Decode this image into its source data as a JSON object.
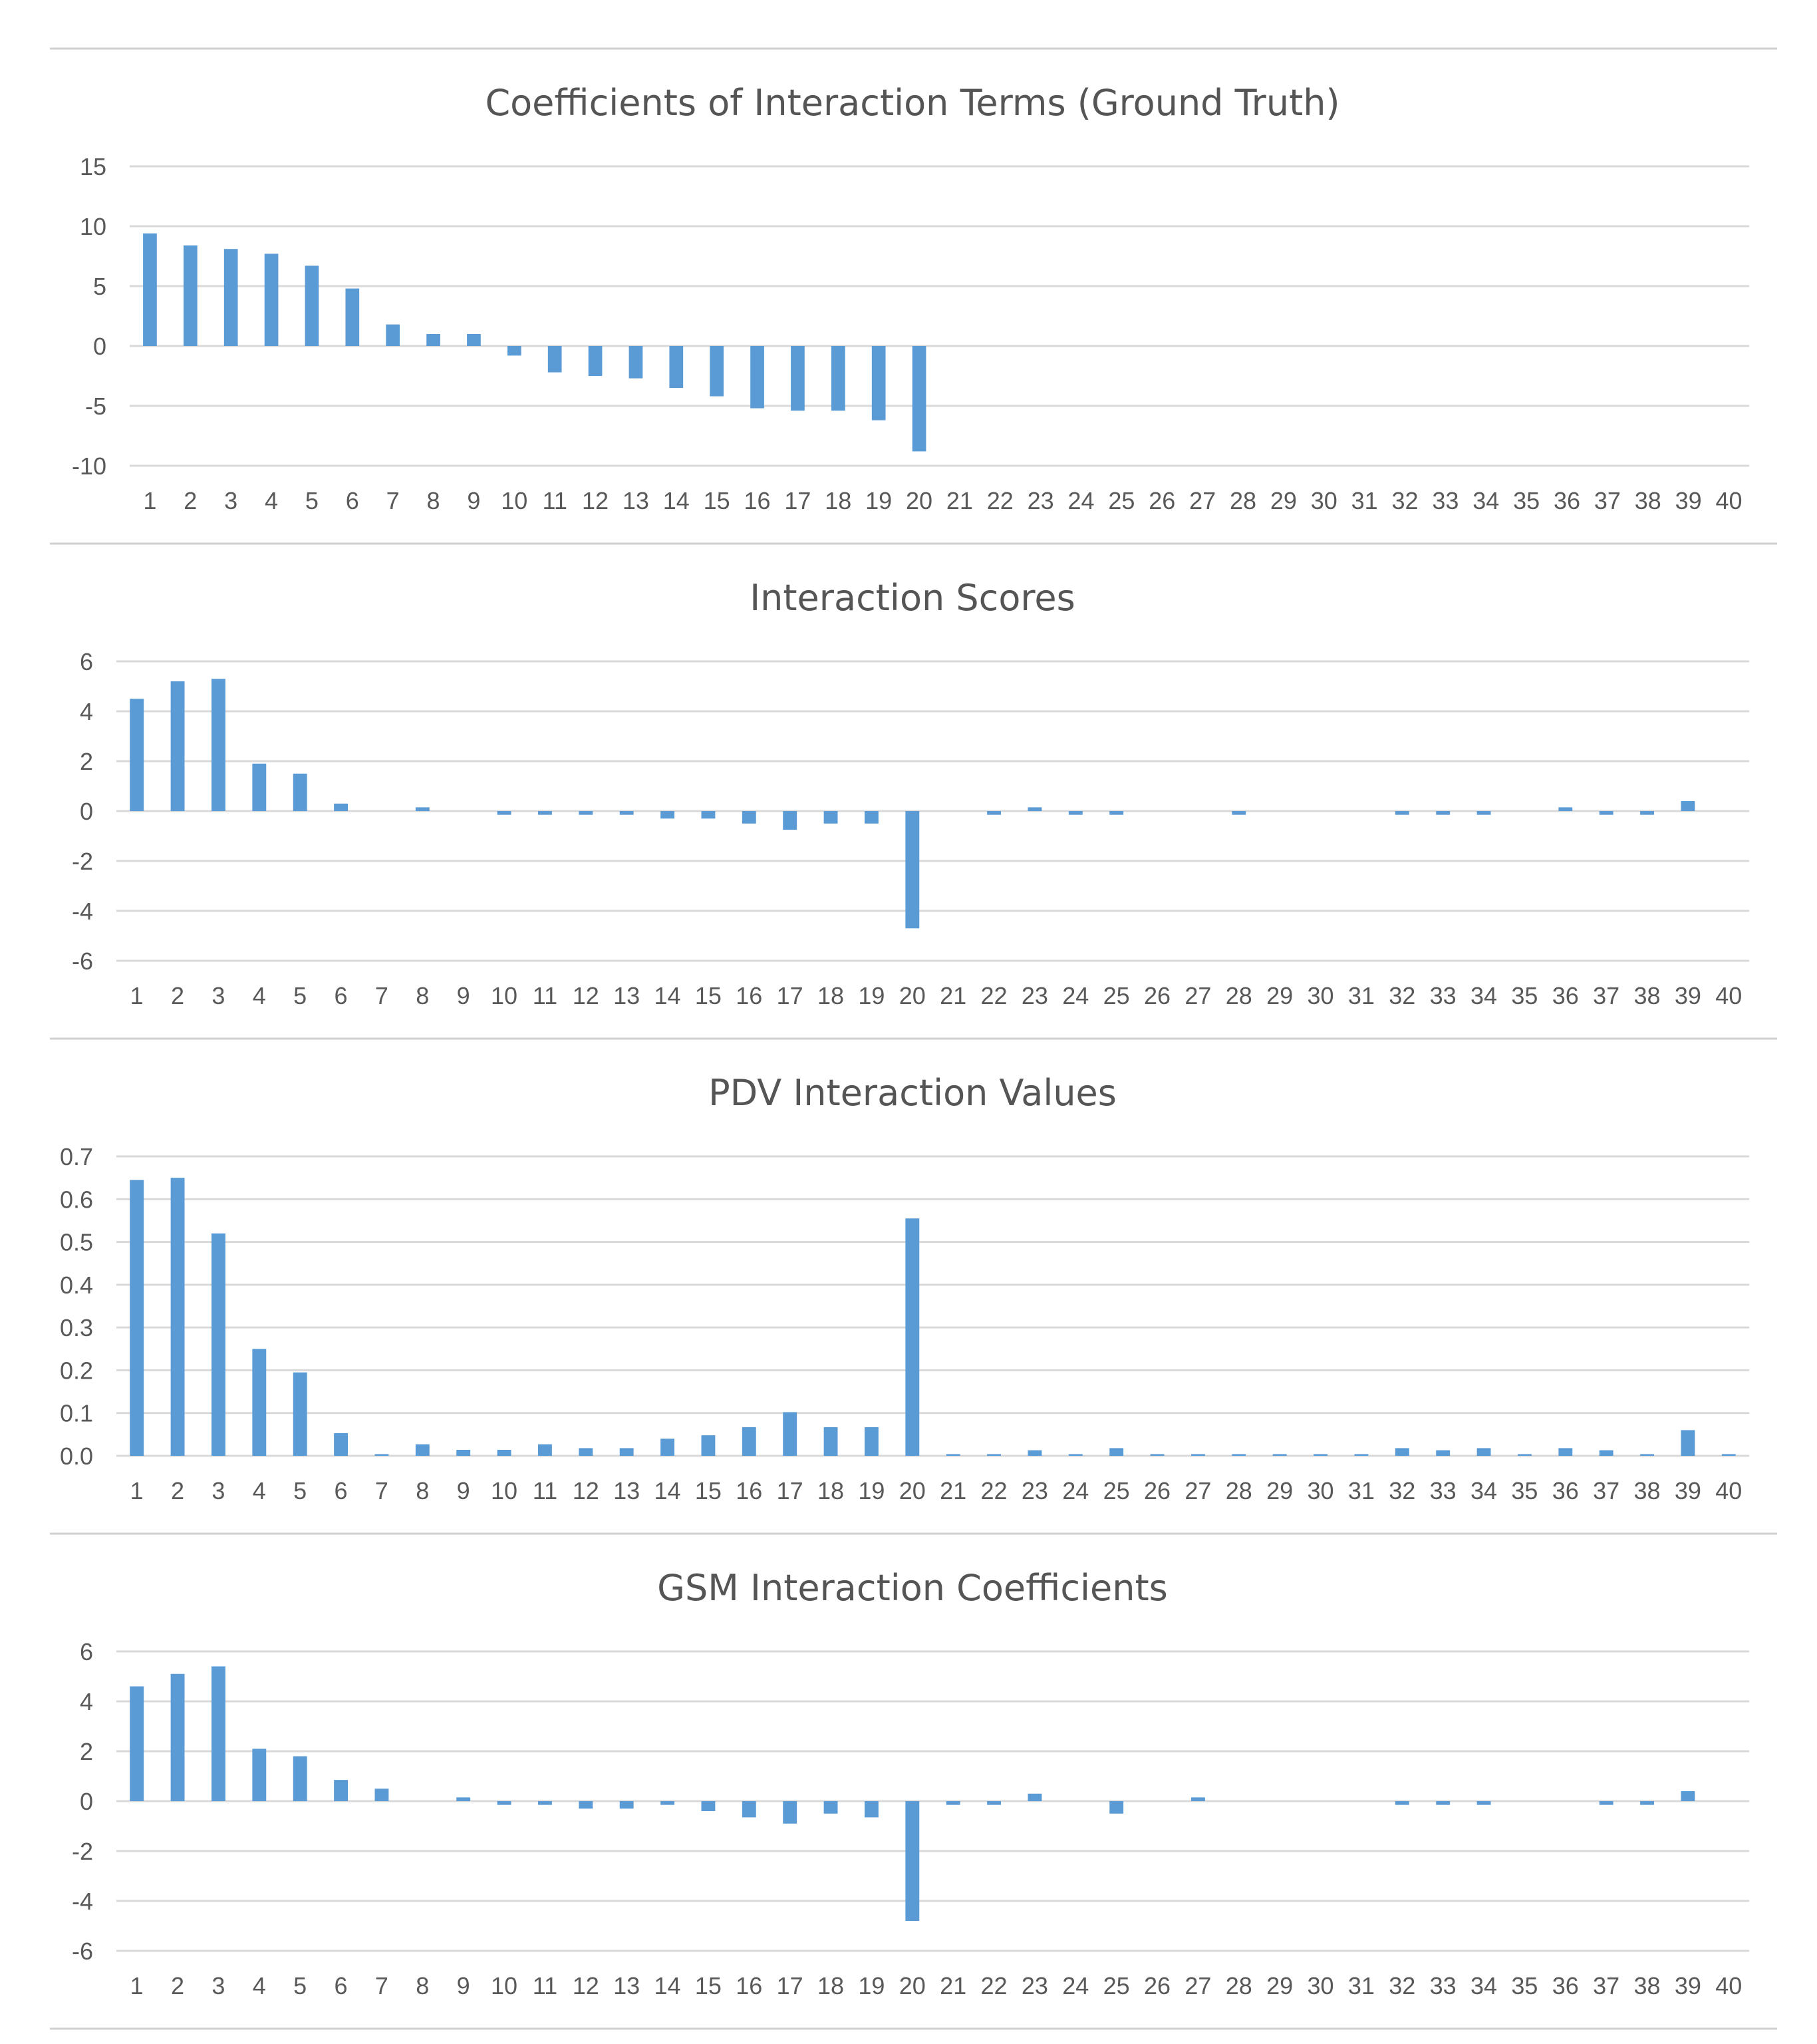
{
  "colors": {
    "bar": "#5b9bd5",
    "grid": "#d9d9d9",
    "text": "#595959",
    "title": "#555555"
  },
  "chart_data": [
    {
      "type": "bar",
      "title": "Coefficients of Interaction Terms (Ground Truth)",
      "categories": [
        "1",
        "2",
        "3",
        "4",
        "5",
        "6",
        "7",
        "8",
        "9",
        "10",
        "11",
        "12",
        "13",
        "14",
        "15",
        "16",
        "17",
        "18",
        "19",
        "20",
        "21",
        "22",
        "23",
        "24",
        "25",
        "26",
        "27",
        "28",
        "29",
        "30",
        "31",
        "32",
        "33",
        "34",
        "35",
        "36",
        "37",
        "38",
        "39",
        "40"
      ],
      "values": [
        9.4,
        8.4,
        8.1,
        7.7,
        6.7,
        4.8,
        1.8,
        1.0,
        1.0,
        -0.8,
        -2.2,
        -2.5,
        -2.7,
        -3.5,
        -4.2,
        -5.2,
        -5.4,
        -5.4,
        -6.2,
        -8.8,
        0,
        0,
        0,
        0,
        0,
        0,
        0,
        0,
        0,
        0,
        0,
        0,
        0,
        0,
        0,
        0,
        0,
        0,
        0,
        0
      ],
      "ylim": [
        -10,
        15
      ],
      "yticks": [
        -10,
        -5,
        0,
        5,
        10,
        15
      ],
      "ytick_labels": [
        "-10",
        "-5",
        "0",
        "5",
        "10",
        "15"
      ],
      "grid": true
    },
    {
      "type": "bar",
      "title": "Interaction Scores",
      "categories": [
        "1",
        "2",
        "3",
        "4",
        "5",
        "6",
        "7",
        "8",
        "9",
        "10",
        "11",
        "12",
        "13",
        "14",
        "15",
        "16",
        "17",
        "18",
        "19",
        "20",
        "21",
        "22",
        "23",
        "24",
        "25",
        "26",
        "27",
        "28",
        "29",
        "30",
        "31",
        "32",
        "33",
        "34",
        "35",
        "36",
        "37",
        "38",
        "39",
        "40"
      ],
      "values": [
        4.5,
        5.2,
        5.3,
        1.9,
        1.5,
        0.3,
        0,
        0.15,
        0,
        -0.15,
        -0.15,
        -0.15,
        -0.15,
        -0.3,
        -0.3,
        -0.5,
        -0.75,
        -0.5,
        -0.5,
        -4.7,
        0,
        -0.15,
        0.15,
        -0.15,
        -0.15,
        0,
        0,
        -0.15,
        0,
        0,
        0,
        -0.15,
        -0.15,
        -0.15,
        0,
        0.15,
        -0.15,
        -0.15,
        0.4,
        0
      ],
      "ylim": [
        -6,
        6
      ],
      "yticks": [
        -6,
        -4,
        -2,
        0,
        2,
        4,
        6
      ],
      "ytick_labels": [
        "-6",
        "-4",
        "-2",
        "0",
        "2",
        "4",
        "6"
      ],
      "grid": true
    },
    {
      "type": "bar",
      "title": "PDV Interaction Values",
      "categories": [
        "1",
        "2",
        "3",
        "4",
        "5",
        "6",
        "7",
        "8",
        "9",
        "10",
        "11",
        "12",
        "13",
        "14",
        "15",
        "16",
        "17",
        "18",
        "19",
        "20",
        "21",
        "22",
        "23",
        "24",
        "25",
        "26",
        "27",
        "28",
        "29",
        "30",
        "31",
        "32",
        "33",
        "34",
        "35",
        "36",
        "37",
        "38",
        "39",
        "40"
      ],
      "values": [
        0.645,
        0.65,
        0.52,
        0.25,
        0.195,
        0.053,
        0.004,
        0.027,
        0.014,
        0.014,
        0.027,
        0.018,
        0.018,
        0.04,
        0.048,
        0.067,
        0.102,
        0.067,
        0.067,
        0.555,
        0.004,
        0.004,
        0.013,
        0.004,
        0.018,
        0.004,
        0.004,
        0.004,
        0.004,
        0.004,
        0.004,
        0.018,
        0.013,
        0.018,
        0.004,
        0.018,
        0.013,
        0.004,
        0.06,
        0.004
      ],
      "ylim": [
        0,
        0.7
      ],
      "yticks": [
        0,
        0.1,
        0.2,
        0.3,
        0.4,
        0.5,
        0.6,
        0.7
      ],
      "ytick_labels": [
        "0.0",
        "0.1",
        "0.2",
        "0.3",
        "0.4",
        "0.5",
        "0.6",
        "0.7"
      ],
      "grid": true
    },
    {
      "type": "bar",
      "title": "GSM Interaction Coefficients",
      "categories": [
        "1",
        "2",
        "3",
        "4",
        "5",
        "6",
        "7",
        "8",
        "9",
        "10",
        "11",
        "12",
        "13",
        "14",
        "15",
        "16",
        "17",
        "18",
        "19",
        "20",
        "21",
        "22",
        "23",
        "24",
        "25",
        "26",
        "27",
        "28",
        "29",
        "30",
        "31",
        "32",
        "33",
        "34",
        "35",
        "36",
        "37",
        "38",
        "39",
        "40"
      ],
      "values": [
        4.6,
        5.1,
        5.4,
        2.1,
        1.8,
        0.85,
        0.5,
        0,
        0.15,
        -0.15,
        -0.15,
        -0.3,
        -0.3,
        -0.15,
        -0.4,
        -0.65,
        -0.9,
        -0.5,
        -0.65,
        -4.8,
        -0.15,
        -0.15,
        0.3,
        0,
        -0.5,
        0,
        0.15,
        0,
        0,
        0,
        0,
        -0.15,
        -0.15,
        -0.15,
        0,
        0,
        -0.15,
        -0.15,
        0.4,
        0
      ],
      "ylim": [
        -6,
        6
      ],
      "yticks": [
        -6,
        -4,
        -2,
        0,
        2,
        4,
        6
      ],
      "ytick_labels": [
        "-6",
        "-4",
        "-2",
        "0",
        "2",
        "4",
        "6"
      ],
      "grid": true
    }
  ]
}
